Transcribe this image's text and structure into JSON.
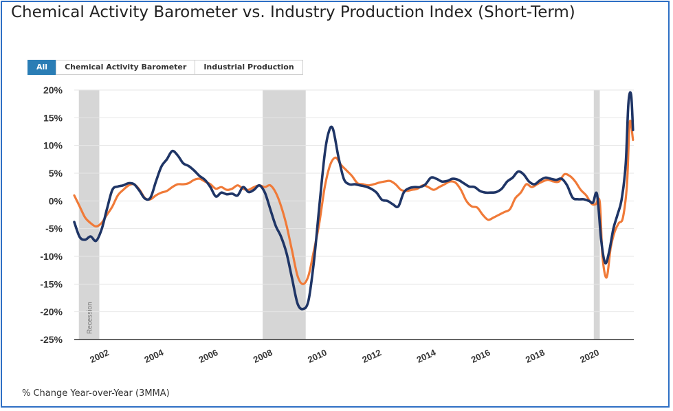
{
  "title": "Chemical Activity Barometer vs. Industry Production Index (Short-Term)",
  "filters": [
    {
      "label": "All",
      "active": true
    },
    {
      "label": "Chemical Activity Barometer",
      "active": false
    },
    {
      "label": "Industrial Production",
      "active": false
    }
  ],
  "footnote": "% Change Year-over-Year (3MMA)",
  "colors": {
    "cab": "#1f3566",
    "ip": "#f07a38",
    "recession": "#d6d6d6",
    "active_tab": "#2a7db5"
  },
  "chart_data": {
    "type": "line",
    "xlabel": "",
    "ylabel": "",
    "xlim": [
      2001.0,
      2021.55
    ],
    "ylim": [
      -25,
      20
    ],
    "yticks": [
      20,
      15,
      10,
      5,
      0,
      -5,
      -10,
      -15,
      -20,
      -25
    ],
    "ytick_labels": [
      "20%",
      "15%",
      "10%",
      "5%",
      "0%",
      "-5%",
      "-10%",
      "-15%",
      "-20%",
      "-25%"
    ],
    "xticks": [
      2002,
      2004,
      2006,
      2008,
      2010,
      2012,
      2014,
      2016,
      2018,
      2020
    ],
    "xtick_labels": [
      "2002",
      "2004",
      "2006",
      "2008",
      "2010",
      "2012",
      "2014",
      "2016",
      "2018",
      "2020"
    ],
    "grid": "horizontal",
    "recessions": [
      {
        "start": 2001.17,
        "end": 2001.92,
        "label": "Recession"
      },
      {
        "start": 2007.92,
        "end": 2009.5
      },
      {
        "start": 2020.08,
        "end": 2020.3
      }
    ],
    "series": [
      {
        "key": "cab",
        "x": [
          2001.0,
          2001.2,
          2001.4,
          2001.6,
          2001.8,
          2002.0,
          2002.2,
          2002.4,
          2002.6,
          2002.8,
          2003.0,
          2003.2,
          2003.4,
          2003.6,
          2003.8,
          2004.0,
          2004.2,
          2004.4,
          2004.6,
          2004.8,
          2005.0,
          2005.2,
          2005.4,
          2005.6,
          2005.8,
          2006.0,
          2006.2,
          2006.4,
          2006.6,
          2006.8,
          2007.0,
          2007.2,
          2007.4,
          2007.6,
          2007.8,
          2008.0,
          2008.2,
          2008.4,
          2008.6,
          2008.8,
          2009.0,
          2009.2,
          2009.4,
          2009.6,
          2009.8,
          2010.0,
          2010.2,
          2010.35,
          2010.5,
          2010.7,
          2010.9,
          2011.1,
          2011.3,
          2011.5,
          2011.7,
          2011.9,
          2012.1,
          2012.3,
          2012.5,
          2012.7,
          2012.9,
          2013.1,
          2013.3,
          2013.5,
          2013.7,
          2013.9,
          2014.1,
          2014.3,
          2014.5,
          2014.7,
          2014.9,
          2015.1,
          2015.3,
          2015.5,
          2015.7,
          2015.9,
          2016.1,
          2016.3,
          2016.5,
          2016.7,
          2016.9,
          2017.1,
          2017.3,
          2017.5,
          2017.7,
          2017.9,
          2018.1,
          2018.3,
          2018.5,
          2018.7,
          2018.9,
          2019.1,
          2019.3,
          2019.5,
          2019.7,
          2019.9,
          2020.05,
          2020.2,
          2020.35,
          2020.5,
          2020.65,
          2020.8,
          2020.95,
          2021.1,
          2021.25,
          2021.35,
          2021.45,
          2021.52
        ],
        "values": [
          -3.8,
          -6.5,
          -7.0,
          -6.4,
          -7.2,
          -5.2,
          -1.5,
          2.0,
          2.6,
          2.8,
          3.2,
          3.0,
          1.8,
          0.4,
          0.6,
          3.5,
          6.2,
          7.5,
          9.0,
          8.2,
          6.8,
          6.3,
          5.5,
          4.5,
          3.8,
          2.5,
          0.8,
          1.5,
          1.2,
          1.3,
          1.0,
          2.5,
          1.6,
          2.0,
          2.8,
          1.5,
          -1.5,
          -4.5,
          -6.5,
          -9.5,
          -14.0,
          -18.5,
          -19.5,
          -18.0,
          -11.0,
          -1.0,
          8.5,
          12.5,
          13.0,
          8.0,
          4.0,
          3.0,
          3.0,
          2.8,
          2.6,
          2.2,
          1.5,
          0.2,
          0.0,
          -0.6,
          -1.0,
          1.5,
          2.3,
          2.5,
          2.5,
          3.0,
          4.2,
          4.0,
          3.5,
          3.6,
          4.0,
          3.8,
          3.2,
          2.6,
          2.5,
          1.8,
          1.5,
          1.5,
          1.6,
          2.2,
          3.5,
          4.2,
          5.3,
          4.8,
          3.5,
          3.0,
          3.7,
          4.2,
          4.0,
          3.8,
          4.0,
          2.8,
          0.6,
          0.3,
          0.3,
          0.0,
          -0.3,
          1.2,
          -7.0,
          -11.2,
          -9.0,
          -5.0,
          -2.5,
          0.2,
          6.5,
          17.5,
          19.2,
          12.8
        ]
      },
      {
        "key": "ip",
        "x": [
          2001.0,
          2001.2,
          2001.4,
          2001.6,
          2001.8,
          2002.0,
          2002.2,
          2002.4,
          2002.6,
          2002.8,
          2003.0,
          2003.2,
          2003.4,
          2003.6,
          2003.8,
          2004.0,
          2004.2,
          2004.4,
          2004.6,
          2004.8,
          2005.0,
          2005.2,
          2005.4,
          2005.6,
          2005.8,
          2006.0,
          2006.2,
          2006.4,
          2006.6,
          2006.8,
          2007.0,
          2007.2,
          2007.4,
          2007.6,
          2007.8,
          2008.0,
          2008.2,
          2008.4,
          2008.6,
          2008.8,
          2009.0,
          2009.2,
          2009.4,
          2009.6,
          2009.8,
          2010.0,
          2010.2,
          2010.4,
          2010.6,
          2010.8,
          2011.0,
          2011.2,
          2011.4,
          2011.6,
          2011.8,
          2012.0,
          2012.2,
          2012.4,
          2012.6,
          2012.8,
          2013.0,
          2013.2,
          2013.4,
          2013.6,
          2013.8,
          2014.0,
          2014.2,
          2014.4,
          2014.6,
          2014.8,
          2015.0,
          2015.2,
          2015.4,
          2015.6,
          2015.8,
          2016.0,
          2016.2,
          2016.4,
          2016.6,
          2016.8,
          2017.0,
          2017.2,
          2017.4,
          2017.6,
          2017.8,
          2018.0,
          2018.2,
          2018.4,
          2018.6,
          2018.8,
          2019.0,
          2019.2,
          2019.4,
          2019.6,
          2019.8,
          2020.0,
          2020.15,
          2020.3,
          2020.4,
          2020.55,
          2020.7,
          2020.85,
          2021.0,
          2021.15,
          2021.3,
          2021.4,
          2021.52
        ],
        "values": [
          1.0,
          -1.0,
          -3.0,
          -4.0,
          -4.6,
          -4.0,
          -2.5,
          -1.0,
          1.0,
          2.0,
          2.8,
          3.0,
          2.0,
          0.5,
          0.3,
          1.0,
          1.5,
          1.8,
          2.5,
          3.0,
          3.0,
          3.2,
          3.8,
          4.0,
          3.5,
          3.0,
          2.2,
          2.5,
          2.0,
          2.2,
          2.8,
          2.2,
          2.0,
          2.5,
          2.8,
          2.5,
          2.8,
          1.5,
          -1.0,
          -4.5,
          -9.0,
          -13.5,
          -15.0,
          -13.5,
          -9.0,
          -4.0,
          2.5,
          6.5,
          7.8,
          6.5,
          5.5,
          4.5,
          3.2,
          3.0,
          2.8,
          3.0,
          3.3,
          3.5,
          3.6,
          3.0,
          2.0,
          1.8,
          2.0,
          2.2,
          2.8,
          2.5,
          2.0,
          2.5,
          3.0,
          3.5,
          3.3,
          2.0,
          0.0,
          -1.0,
          -1.2,
          -2.5,
          -3.4,
          -3.0,
          -2.5,
          -2.0,
          -1.5,
          0.5,
          1.5,
          3.0,
          2.5,
          3.0,
          3.5,
          3.8,
          3.5,
          3.5,
          4.8,
          4.5,
          3.5,
          2.0,
          1.0,
          -0.5,
          -0.6,
          -0.2,
          -10.0,
          -13.8,
          -8.5,
          -5.5,
          -4.0,
          -3.0,
          3.0,
          14.2,
          11.0
        ]
      }
    ]
  }
}
